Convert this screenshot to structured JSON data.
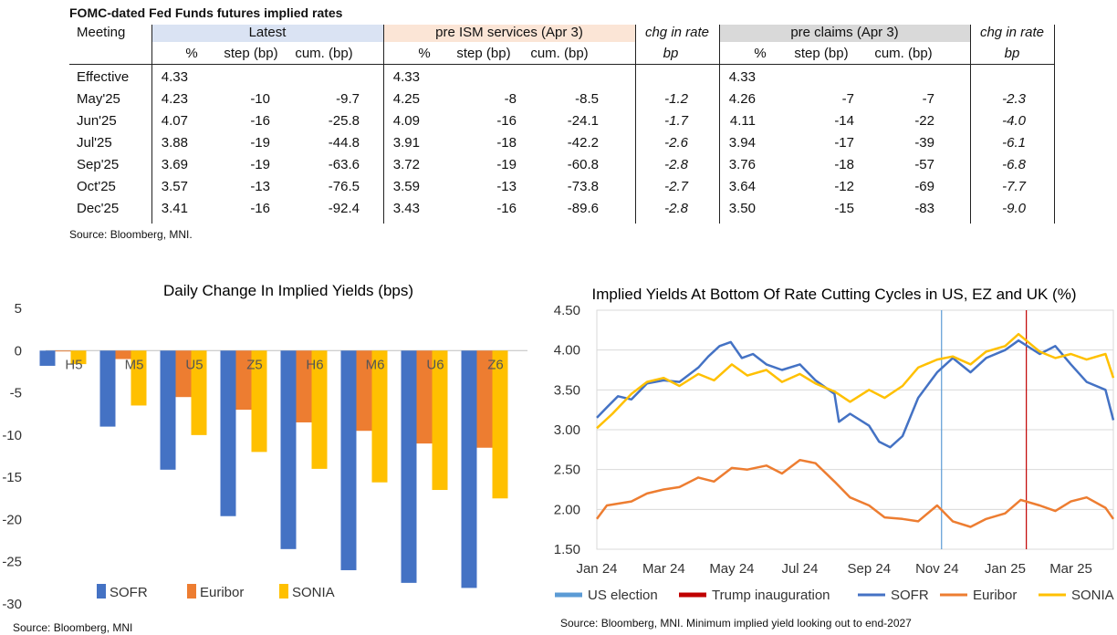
{
  "table": {
    "title": "FOMC-dated Fed Funds futures implied rates",
    "source": "Source: Bloomberg, MNI.",
    "meeting_label": "Meeting",
    "groups": {
      "latest": "Latest",
      "pre_ism": "pre ISM services (Apr 3)",
      "chg1": "chg in rate",
      "pre_claims": "pre claims (Apr 3)",
      "chg2": "chg in rate"
    },
    "subheaders": {
      "pct": "%",
      "step": "step (bp)",
      "cum": "cum. (bp)",
      "bp": "bp"
    },
    "colors": {
      "latest_fill": "#dae3f3",
      "pre_ism_fill": "#fbe5d6",
      "pre_claims_fill": "#d9d9d9"
    },
    "rows": [
      {
        "meeting": "Effective",
        "l_pct": "4.33",
        "l_step": "",
        "l_cum": "",
        "i_pct": "4.33",
        "i_step": "",
        "i_cum": "",
        "chg1": "",
        "c_pct": "4.33",
        "c_step": "",
        "c_cum": "",
        "chg2": ""
      },
      {
        "meeting": "May'25",
        "l_pct": "4.23",
        "l_step": "-10",
        "l_cum": "-9.7",
        "i_pct": "4.25",
        "i_step": "-8",
        "i_cum": "-8.5",
        "chg1": "-1.2",
        "c_pct": "4.26",
        "c_step": "-7",
        "c_cum": "-7",
        "chg2": "-2.3"
      },
      {
        "meeting": "Jun'25",
        "l_pct": "4.07",
        "l_step": "-16",
        "l_cum": "-25.8",
        "i_pct": "4.09",
        "i_step": "-16",
        "i_cum": "-24.1",
        "chg1": "-1.7",
        "c_pct": "4.11",
        "c_step": "-14",
        "c_cum": "-22",
        "chg2": "-4.0"
      },
      {
        "meeting": "Jul'25",
        "l_pct": "3.88",
        "l_step": "-19",
        "l_cum": "-44.8",
        "i_pct": "3.91",
        "i_step": "-18",
        "i_cum": "-42.2",
        "chg1": "-2.6",
        "c_pct": "3.94",
        "c_step": "-17",
        "c_cum": "-39",
        "chg2": "-6.1"
      },
      {
        "meeting": "Sep'25",
        "l_pct": "3.69",
        "l_step": "-19",
        "l_cum": "-63.6",
        "i_pct": "3.72",
        "i_step": "-19",
        "i_cum": "-60.8",
        "chg1": "-2.8",
        "c_pct": "3.76",
        "c_step": "-18",
        "c_cum": "-57",
        "chg2": "-6.8"
      },
      {
        "meeting": "Oct'25",
        "l_pct": "3.57",
        "l_step": "-13",
        "l_cum": "-76.5",
        "i_pct": "3.59",
        "i_step": "-13",
        "i_cum": "-73.8",
        "chg1": "-2.7",
        "c_pct": "3.64",
        "c_step": "-12",
        "c_cum": "-69",
        "chg2": "-7.7"
      },
      {
        "meeting": "Dec'25",
        "l_pct": "3.41",
        "l_step": "-16",
        "l_cum": "-92.4",
        "i_pct": "3.43",
        "i_step": "-16",
        "i_cum": "-89.6",
        "chg1": "-2.8",
        "c_pct": "3.50",
        "c_step": "-15",
        "c_cum": "-83",
        "chg2": "-9.0"
      }
    ]
  },
  "chart_data": [
    {
      "type": "bar",
      "title": "Daily Change In Implied Yields (bps)",
      "source": "Source: Bloomberg, MNI",
      "categories": [
        "H5",
        "M5",
        "U5",
        "Z5",
        "H6",
        "M6",
        "U6",
        "Z6"
      ],
      "ylim": [
        -30,
        5
      ],
      "yticks": [
        5,
        0,
        -5,
        -10,
        -15,
        -20,
        -25,
        -30
      ],
      "grid": false,
      "legend_position": "bottom-left",
      "series": [
        {
          "name": "SOFR",
          "color": "#4472c4",
          "values": [
            -1.8,
            -9.0,
            -14.1,
            -19.6,
            -23.5,
            -26.0,
            -27.5,
            -28.1
          ]
        },
        {
          "name": "Euribor",
          "color": "#ed7d31",
          "values": [
            -0.1,
            -1.0,
            -5.5,
            -7.0,
            -8.5,
            -9.5,
            -11.0,
            -11.5
          ]
        },
        {
          "name": "SONIA",
          "color": "#ffc000",
          "values": [
            -1.6,
            -6.5,
            -10.0,
            -12.0,
            -14.0,
            -15.6,
            -16.5,
            -17.5
          ]
        }
      ]
    },
    {
      "type": "line",
      "title": "Implied Yields At Bottom Of Rate Cutting Cycles in US, EZ and UK (%)",
      "source": "Source: Bloomberg, MNI. Minimum implied yield looking out to end-2027",
      "x_range": [
        "2024-01-01",
        "2025-04-08"
      ],
      "ylim": [
        1.5,
        4.5
      ],
      "yticks": [
        "4.50",
        "4.00",
        "3.50",
        "3.00",
        "2.50",
        "2.00",
        "1.50"
      ],
      "xticks": [
        "Jan 24",
        "Mar 24",
        "May 24",
        "Jul 24",
        "Sep 24",
        "Nov 24",
        "Jan 25",
        "Mar 25"
      ],
      "grid": true,
      "legend_position": "bottom",
      "events": [
        {
          "name": "US election",
          "date": "2024-11-05",
          "color": "#5b9bd5"
        },
        {
          "name": "Trump inauguration",
          "date": "2025-01-20",
          "color": "#c00000"
        }
      ],
      "series": [
        {
          "name": "SOFR",
          "color": "#4472c4",
          "points": [
            [
              "2024-01-01",
              3.15
            ],
            [
              "2024-01-10",
              3.28
            ],
            [
              "2024-01-20",
              3.42
            ],
            [
              "2024-02-01",
              3.38
            ],
            [
              "2024-02-15",
              3.58
            ],
            [
              "2024-03-01",
              3.62
            ],
            [
              "2024-03-15",
              3.6
            ],
            [
              "2024-04-01",
              3.78
            ],
            [
              "2024-04-10",
              3.92
            ],
            [
              "2024-04-20",
              4.05
            ],
            [
              "2024-04-30",
              4.1
            ],
            [
              "2024-05-10",
              3.9
            ],
            [
              "2024-05-20",
              3.95
            ],
            [
              "2024-06-01",
              3.82
            ],
            [
              "2024-06-15",
              3.75
            ],
            [
              "2024-07-01",
              3.82
            ],
            [
              "2024-07-15",
              3.62
            ],
            [
              "2024-08-01",
              3.45
            ],
            [
              "2024-08-05",
              3.1
            ],
            [
              "2024-08-15",
              3.2
            ],
            [
              "2024-09-01",
              3.05
            ],
            [
              "2024-09-10",
              2.85
            ],
            [
              "2024-09-20",
              2.78
            ],
            [
              "2024-10-01",
              2.92
            ],
            [
              "2024-10-15",
              3.4
            ],
            [
              "2024-11-01",
              3.72
            ],
            [
              "2024-11-15",
              3.9
            ],
            [
              "2024-12-01",
              3.72
            ],
            [
              "2024-12-15",
              3.9
            ],
            [
              "2025-01-01",
              4.0
            ],
            [
              "2025-01-13",
              4.12
            ],
            [
              "2025-02-01",
              3.95
            ],
            [
              "2025-02-15",
              4.05
            ],
            [
              "2025-03-01",
              3.82
            ],
            [
              "2025-03-15",
              3.6
            ],
            [
              "2025-04-01",
              3.5
            ],
            [
              "2025-04-08",
              3.12
            ]
          ]
        },
        {
          "name": "Euribor",
          "color": "#ed7d31",
          "points": [
            [
              "2024-01-01",
              1.88
            ],
            [
              "2024-01-10",
              2.05
            ],
            [
              "2024-02-01",
              2.1
            ],
            [
              "2024-02-15",
              2.2
            ],
            [
              "2024-03-01",
              2.25
            ],
            [
              "2024-03-15",
              2.28
            ],
            [
              "2024-04-01",
              2.4
            ],
            [
              "2024-04-15",
              2.35
            ],
            [
              "2024-05-01",
              2.52
            ],
            [
              "2024-05-15",
              2.5
            ],
            [
              "2024-06-01",
              2.55
            ],
            [
              "2024-06-15",
              2.45
            ],
            [
              "2024-07-01",
              2.62
            ],
            [
              "2024-07-15",
              2.58
            ],
            [
              "2024-08-01",
              2.35
            ],
            [
              "2024-08-15",
              2.15
            ],
            [
              "2024-09-01",
              2.05
            ],
            [
              "2024-09-15",
              1.9
            ],
            [
              "2024-10-01",
              1.88
            ],
            [
              "2024-10-15",
              1.85
            ],
            [
              "2024-11-01",
              2.05
            ],
            [
              "2024-11-15",
              1.85
            ],
            [
              "2024-12-01",
              1.78
            ],
            [
              "2024-12-15",
              1.88
            ],
            [
              "2025-01-01",
              1.95
            ],
            [
              "2025-01-15",
              2.12
            ],
            [
              "2025-02-01",
              2.05
            ],
            [
              "2025-02-15",
              1.98
            ],
            [
              "2025-03-01",
              2.1
            ],
            [
              "2025-03-15",
              2.15
            ],
            [
              "2025-04-01",
              2.02
            ],
            [
              "2025-04-08",
              1.88
            ]
          ]
        },
        {
          "name": "SONIA",
          "color": "#ffc000",
          "points": [
            [
              "2024-01-01",
              3.02
            ],
            [
              "2024-01-15",
              3.2
            ],
            [
              "2024-02-01",
              3.45
            ],
            [
              "2024-02-15",
              3.6
            ],
            [
              "2024-03-01",
              3.65
            ],
            [
              "2024-03-15",
              3.55
            ],
            [
              "2024-04-01",
              3.7
            ],
            [
              "2024-04-15",
              3.62
            ],
            [
              "2024-05-01",
              3.82
            ],
            [
              "2024-05-15",
              3.68
            ],
            [
              "2024-06-01",
              3.75
            ],
            [
              "2024-06-15",
              3.6
            ],
            [
              "2024-07-01",
              3.7
            ],
            [
              "2024-07-15",
              3.58
            ],
            [
              "2024-08-01",
              3.48
            ],
            [
              "2024-08-15",
              3.35
            ],
            [
              "2024-09-01",
              3.5
            ],
            [
              "2024-09-15",
              3.4
            ],
            [
              "2024-10-01",
              3.55
            ],
            [
              "2024-10-15",
              3.78
            ],
            [
              "2024-11-01",
              3.88
            ],
            [
              "2024-11-15",
              3.92
            ],
            [
              "2024-12-01",
              3.82
            ],
            [
              "2024-12-15",
              3.98
            ],
            [
              "2025-01-01",
              4.05
            ],
            [
              "2025-01-13",
              4.2
            ],
            [
              "2025-02-01",
              3.98
            ],
            [
              "2025-02-15",
              3.9
            ],
            [
              "2025-03-01",
              3.95
            ],
            [
              "2025-03-15",
              3.88
            ],
            [
              "2025-04-01",
              3.95
            ],
            [
              "2025-04-08",
              3.65
            ]
          ]
        }
      ]
    }
  ]
}
